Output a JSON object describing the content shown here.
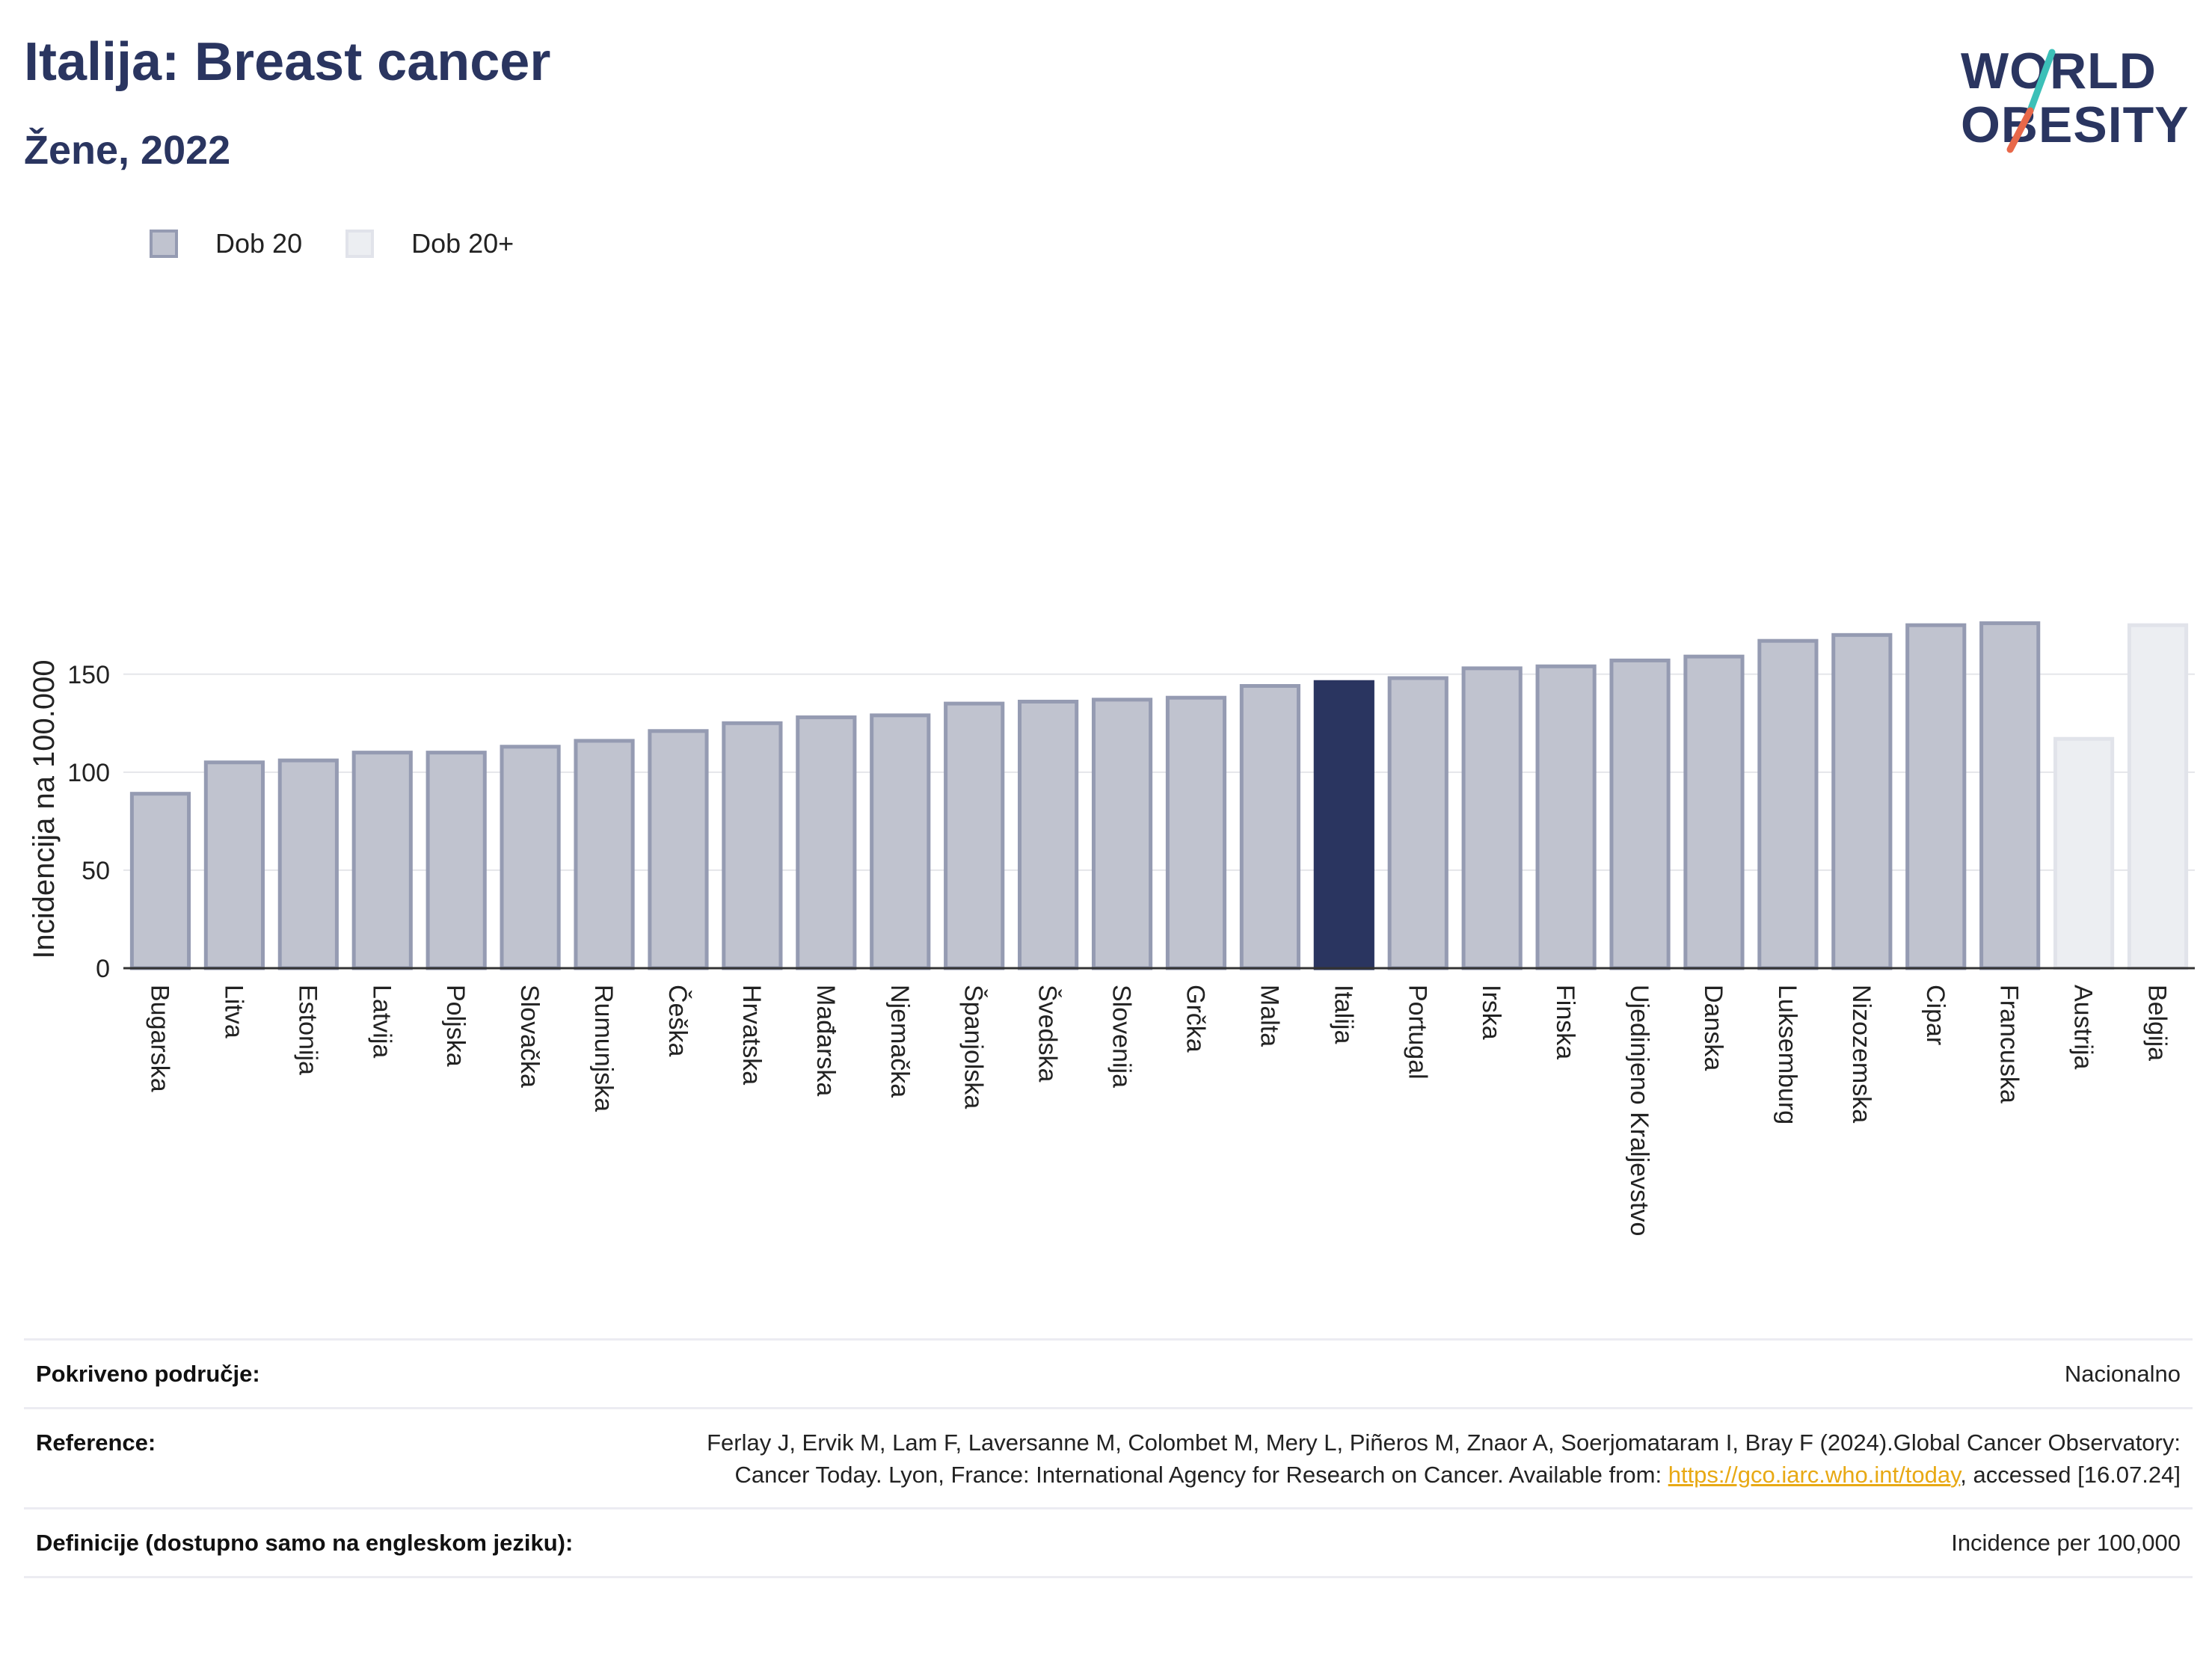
{
  "header": {
    "title": "Italija: Breast cancer",
    "subtitle": "Žene, 2022"
  },
  "logo": {
    "line1": "WORLD",
    "line2": "OBESITY",
    "slash_colors": [
      "#3cc0b8",
      "#e8684a"
    ]
  },
  "legend": {
    "items": [
      {
        "label": "Dob 20",
        "color": "#c0c3cf",
        "border": "#959bb2"
      },
      {
        "label": "Dob 20+",
        "color": "#eceef2",
        "border": "#e1e3ea"
      }
    ]
  },
  "colors": {
    "highlight": "#2a3560",
    "grid": "#e5e6ea",
    "axis": "#333333"
  },
  "chart_data": {
    "type": "bar",
    "title": "",
    "xlabel": "",
    "ylabel": "Incidencija na 100.000",
    "ylim": [
      0,
      185
    ],
    "yticks": [
      0,
      50,
      100,
      150
    ],
    "grid": true,
    "legend_position": "top-left",
    "highlight": "Italija",
    "categories": [
      "Bugarska",
      "Litva",
      "Estonija",
      "Latvija",
      "Poljska",
      "Slovačka",
      "Rumunjska",
      "Češka",
      "Hrvatska",
      "Mađarska",
      "Njemačka",
      "Španjolska",
      "Švedska",
      "Slovenija",
      "Grčka",
      "Malta",
      "Italija",
      "Portugal",
      "Irska",
      "Finska",
      "Ujedinjeno Kraljevstvo",
      "Danska",
      "Luksemburg",
      "Nizozemska",
      "Cipar",
      "Francuska",
      "Austrija",
      "Belgija"
    ],
    "series": [
      {
        "name": "Dob 20",
        "values": [
          89,
          105,
          106,
          110,
          110,
          113,
          116,
          121,
          125,
          128,
          129,
          135,
          136,
          137,
          138,
          144,
          146,
          148,
          153,
          154,
          157,
          159,
          167,
          170,
          175,
          176,
          null,
          null
        ]
      },
      {
        "name": "Dob 20+",
        "values": [
          null,
          null,
          null,
          null,
          null,
          null,
          null,
          null,
          null,
          null,
          null,
          null,
          null,
          null,
          null,
          null,
          null,
          null,
          null,
          null,
          null,
          null,
          null,
          null,
          null,
          null,
          117,
          175
        ]
      }
    ]
  },
  "footer": {
    "coverage_label": "Pokriveno područje:",
    "coverage_value": "Nacionalno",
    "reference_label": "Reference:",
    "reference_text": "Ferlay J, Ervik M, Lam F, Laversanne M, Colombet M, Mery L, Piñeros M, Znaor A, Soerjomataram I, Bray F (2024).Global Cancer Observatory: Cancer Today. Lyon, France: International Agency for Research on Cancer. Available from: ",
    "reference_link": "https://gco.iarc.who.int/today",
    "reference_suffix": ", accessed [16.07.24]",
    "definitions_label": "Definicije (dostupno samo na engleskom jeziku):",
    "definitions_value": "Incidence per 100,000"
  }
}
